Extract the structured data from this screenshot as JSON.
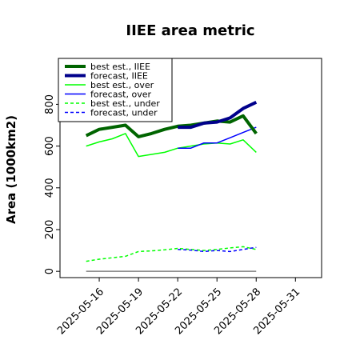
{
  "chart_data": {
    "type": "line",
    "title": "IIEE area metric",
    "xlabel": "",
    "ylabel": "Area (1000km2)",
    "xlim": [
      "2025-05-13",
      "2025-06-02"
    ],
    "ylim": [
      -30,
      1020
    ],
    "yticks": [
      0,
      200,
      400,
      600,
      800
    ],
    "xticks": [
      "2025-05-16",
      "2025-05-19",
      "2025-05-22",
      "2025-05-25",
      "2025-05-28",
      "2025-05-31"
    ],
    "highlighted_xtick": "2025-05-22",
    "highlight_color": "#228b22",
    "legend_position": "upper-left",
    "grid": false,
    "series": [
      {
        "name": "best est., IIEE",
        "color": "#006400",
        "style": "solid",
        "width": "thick",
        "x": [
          "2025-05-15",
          "2025-05-16",
          "2025-05-17",
          "2025-05-18",
          "2025-05-19",
          "2025-05-20",
          "2025-05-21",
          "2025-05-22",
          "2025-05-23",
          "2025-05-24",
          "2025-05-25",
          "2025-05-26",
          "2025-05-27",
          "2025-05-28"
        ],
        "y": [
          650,
          680,
          690,
          700,
          645,
          660,
          680,
          695,
          700,
          710,
          720,
          715,
          745,
          660
        ]
      },
      {
        "name": "forecast, IIEE",
        "color": "#00008b",
        "style": "solid",
        "width": "thick",
        "x": [
          "2025-05-22",
          "2025-05-23",
          "2025-05-24",
          "2025-05-25",
          "2025-05-26",
          "2025-05-27",
          "2025-05-28"
        ],
        "y": [
          690,
          690,
          710,
          715,
          735,
          780,
          810
        ]
      },
      {
        "name": "best est., over",
        "color": "#00ff00",
        "style": "solid",
        "width": "thin",
        "x": [
          "2025-05-15",
          "2025-05-16",
          "2025-05-17",
          "2025-05-18",
          "2025-05-19",
          "2025-05-20",
          "2025-05-21",
          "2025-05-22",
          "2025-05-23",
          "2025-05-24",
          "2025-05-25",
          "2025-05-26",
          "2025-05-27",
          "2025-05-28"
        ],
        "y": [
          600,
          620,
          635,
          660,
          550,
          560,
          570,
          590,
          600,
          610,
          615,
          610,
          630,
          570
        ]
      },
      {
        "name": "forecast, over",
        "color": "#0000ff",
        "style": "solid",
        "width": "thin",
        "x": [
          "2025-05-22",
          "2025-05-23",
          "2025-05-24",
          "2025-05-25",
          "2025-05-26",
          "2025-05-27",
          "2025-05-28"
        ],
        "y": [
          590,
          590,
          615,
          615,
          640,
          665,
          690
        ]
      },
      {
        "name": "best est., under",
        "color": "#00ff00",
        "style": "dashed",
        "width": "thin",
        "x": [
          "2025-05-15",
          "2025-05-16",
          "2025-05-17",
          "2025-05-18",
          "2025-05-19",
          "2025-05-20",
          "2025-05-21",
          "2025-05-22",
          "2025-05-23",
          "2025-05-24",
          "2025-05-25",
          "2025-05-26",
          "2025-05-27",
          "2025-05-28"
        ],
        "y": [
          48,
          58,
          65,
          72,
          95,
          98,
          103,
          110,
          105,
          100,
          105,
          112,
          118,
          105
        ]
      },
      {
        "name": "forecast, under",
        "color": "#0000ff",
        "style": "dashed",
        "width": "thin",
        "x": [
          "2025-05-22",
          "2025-05-23",
          "2025-05-24",
          "2025-05-25",
          "2025-05-26",
          "2025-05-27",
          "2025-05-28"
        ],
        "y": [
          105,
          102,
          95,
          100,
          95,
          105,
          115
        ]
      }
    ],
    "reference_line": {
      "color": "#808080",
      "y": 0,
      "x": [
        "2025-05-15",
        "2025-05-28"
      ]
    }
  }
}
